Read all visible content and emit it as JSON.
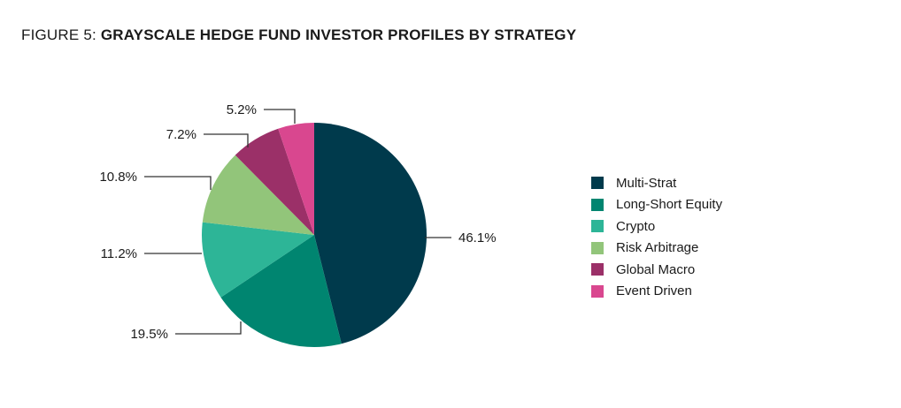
{
  "title": {
    "prefix": "FIGURE 5: ",
    "main": "GRAYSCALE HEDGE FUND INVESTOR PROFILES BY STRATEGY"
  },
  "chart_data": {
    "type": "pie",
    "title": "FIGURE 5: GRAYSCALE HEDGE FUND INVESTOR PROFILES BY STRATEGY",
    "legend_position": "right",
    "slices": [
      {
        "name": "Multi-Strat",
        "value": 46.1,
        "label": "46.1%",
        "color": "#003a4c"
      },
      {
        "name": "Long-Short Equity",
        "value": 19.5,
        "label": "19.5%",
        "color": "#008570"
      },
      {
        "name": "Crypto",
        "value": 11.2,
        "label": "11.2%",
        "color": "#2db597"
      },
      {
        "name": "Risk Arbitrage",
        "value": 10.8,
        "label": "10.8%",
        "color": "#92c57a"
      },
      {
        "name": "Global Macro",
        "value": 7.2,
        "label": "7.2%",
        "color": "#9b3068"
      },
      {
        "name": "Event Driven",
        "value": 5.2,
        "label": "5.2%",
        "color": "#d9478f"
      }
    ]
  }
}
